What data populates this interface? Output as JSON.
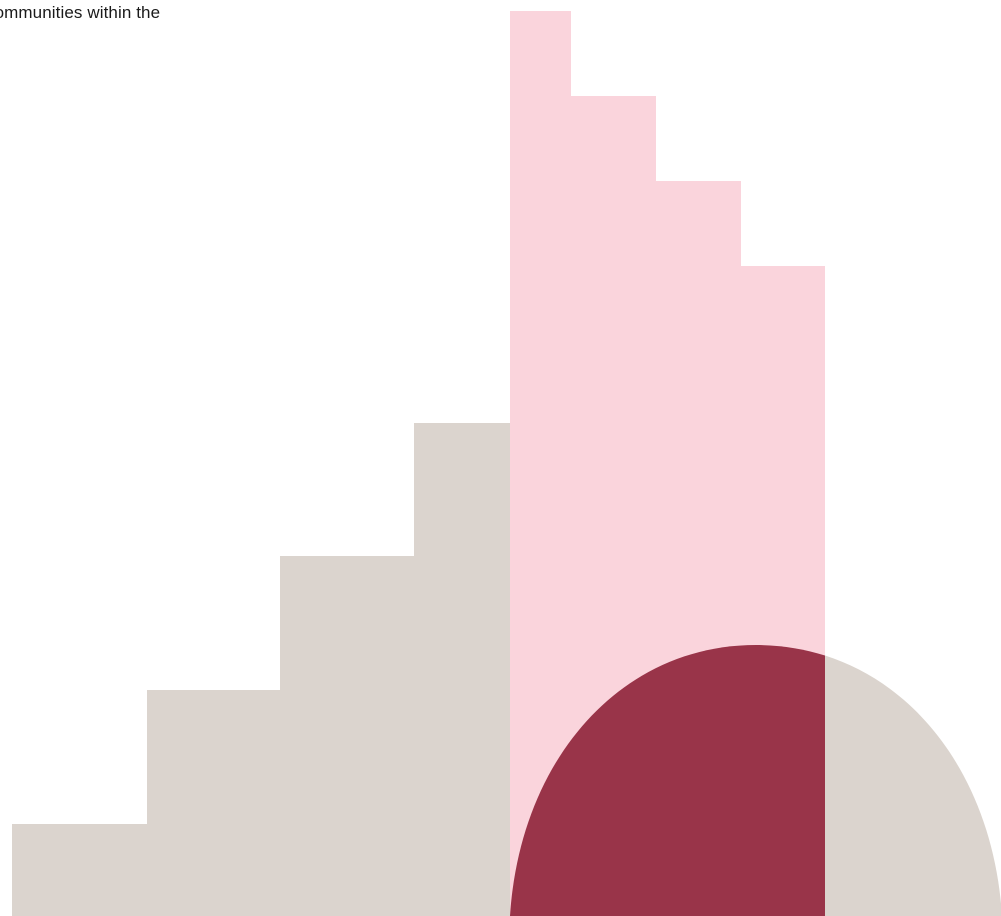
{
  "page": {
    "clipped_text": "communities within the"
  },
  "colors": {
    "background": "#ffffff",
    "beige_steps": "#dbd4ce",
    "pink_steps": "#fad4dc",
    "maroon_arch": "#993449",
    "arch_outer": "#dbd4ce",
    "text": "#1a1a1a"
  },
  "icons": {
    "decoration": "abstract-stepped-shapes-illustration"
  }
}
